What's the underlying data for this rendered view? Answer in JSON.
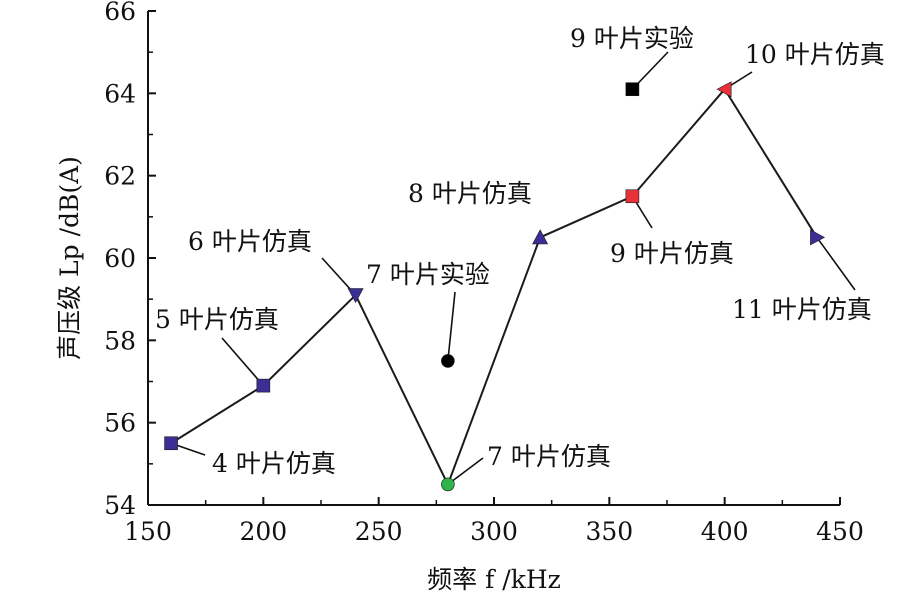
{
  "chart_data": {
    "type": "line",
    "xlabel": "频率 f /kHz",
    "ylabel": "声压级 Lp /dB(A)",
    "xlim": [
      150,
      450
    ],
    "ylim": [
      54,
      66
    ],
    "xticks": [
      150,
      200,
      250,
      300,
      350,
      400,
      450
    ],
    "yticks": [
      54,
      56,
      58,
      60,
      62,
      64,
      66
    ],
    "grid": false,
    "series": [
      {
        "type": "line",
        "points": [
          {
            "x": 160,
            "y": 55.5,
            "label": "4 叶片仿真",
            "marker": "square",
            "color": "#3b2f96"
          },
          {
            "x": 200,
            "y": 56.9,
            "label": "5 叶片仿真",
            "marker": "square",
            "color": "#3b2f96"
          },
          {
            "x": 240,
            "y": 59.1,
            "label": "6 叶片仿真",
            "marker": "triangle-down",
            "color": "#3b2f96"
          },
          {
            "x": 280,
            "y": 54.5,
            "label": "7 叶片仿真",
            "marker": "circle",
            "color": "#2db34a"
          },
          {
            "x": 320,
            "y": 60.5,
            "label": "8 叶片仿真",
            "marker": "triangle-up",
            "color": "#3b2f96"
          },
          {
            "x": 360,
            "y": 61.5,
            "label": "9 叶片仿真",
            "marker": "square",
            "color": "#e8323a"
          },
          {
            "x": 400,
            "y": 64.1,
            "label": "10 叶片仿真",
            "marker": "triangle-left",
            "color": "#e8323a"
          },
          {
            "x": 440,
            "y": 60.5,
            "label": "11 叶片仿真",
            "marker": "triangle-right",
            "color": "#3b2f96"
          }
        ]
      },
      {
        "type": "scatter",
        "points": [
          {
            "x": 280,
            "y": 57.5,
            "label": "7 叶片实验",
            "marker": "circle",
            "color": "#000000"
          },
          {
            "x": 360,
            "y": 64.1,
            "label": "9 叶片实验",
            "marker": "square",
            "color": "#000000"
          }
        ]
      }
    ]
  }
}
